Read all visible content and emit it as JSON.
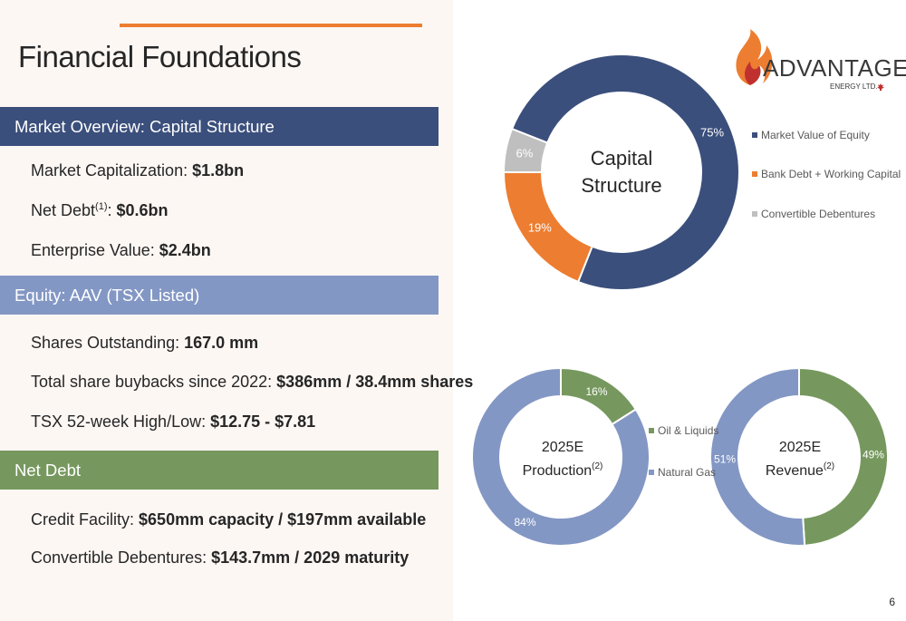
{
  "title": "Financial Foundations",
  "sections": [
    {
      "header": "Market Overview: Capital Structure"
    },
    {
      "header": "Equity: AAV (TSX Listed)"
    },
    {
      "header": "Net Debt"
    }
  ],
  "items": {
    "market_cap": {
      "label": "Market Capitalization: ",
      "value": "$1.8bn"
    },
    "net_debt": {
      "label": "Net Debt",
      "sup": "(1)",
      "colon": ": ",
      "value": "$0.6bn"
    },
    "ev": {
      "label": "Enterprise Value: ",
      "value": "$2.4bn"
    },
    "shares": {
      "label": "Shares Outstanding: ",
      "value": "167.0 mm"
    },
    "buybacks": {
      "label": "Total share buybacks since 2022: ",
      "value": "$386mm / 38.4mm shares"
    },
    "high_low": {
      "label": "TSX 52-week High/Low: ",
      "value": "$12.75 - $7.81"
    },
    "credit": {
      "label": "Credit Facility: ",
      "value": "$650mm capacity / $197mm available"
    },
    "convert": {
      "label": "Convertible Debentures: ",
      "value": "$143.7mm / 2029 maturity"
    }
  },
  "logo": {
    "word": "ADVANTAGE",
    "sub": "ENERGY LTD."
  },
  "page_number": "6",
  "colors": {
    "navy": "#3b4f7c",
    "orange": "#ed7d31",
    "grey": "#bfbfbf",
    "light_blue": "#8397c4",
    "green": "#76985e"
  },
  "chart_data": [
    {
      "type": "pie",
      "center_label_line1": "Capital",
      "center_label_line2": "Structure",
      "slices": [
        {
          "name": "Market Value of Equity",
          "value": 75,
          "label": "75%",
          "color": "#3b4f7c"
        },
        {
          "name": "Bank Debt + Working Capital",
          "value": 19,
          "label": "19%",
          "color": "#ed7d31"
        },
        {
          "name": "Convertible Debentures",
          "value": 6,
          "label": "6%",
          "color": "#bfbfbf"
        }
      ]
    },
    {
      "type": "pie",
      "center_label_line1": "2025E",
      "center_label_line2": "Production",
      "center_sup": "(2)",
      "slices": [
        {
          "name": "Oil & Liquids",
          "value": 16,
          "label": "16%",
          "color": "#76985e"
        },
        {
          "name": "Natural Gas",
          "value": 84,
          "label": "84%",
          "color": "#8397c4"
        }
      ]
    },
    {
      "type": "pie",
      "center_label_line1": "2025E",
      "center_label_line2": "Revenue",
      "center_sup": "(2)",
      "slices": [
        {
          "name": "Oil & Liquids",
          "value": 49,
          "label": "49%",
          "color": "#76985e"
        },
        {
          "name": "Natural Gas",
          "value": 51,
          "label": "51%",
          "color": "#8397c4"
        }
      ]
    }
  ]
}
